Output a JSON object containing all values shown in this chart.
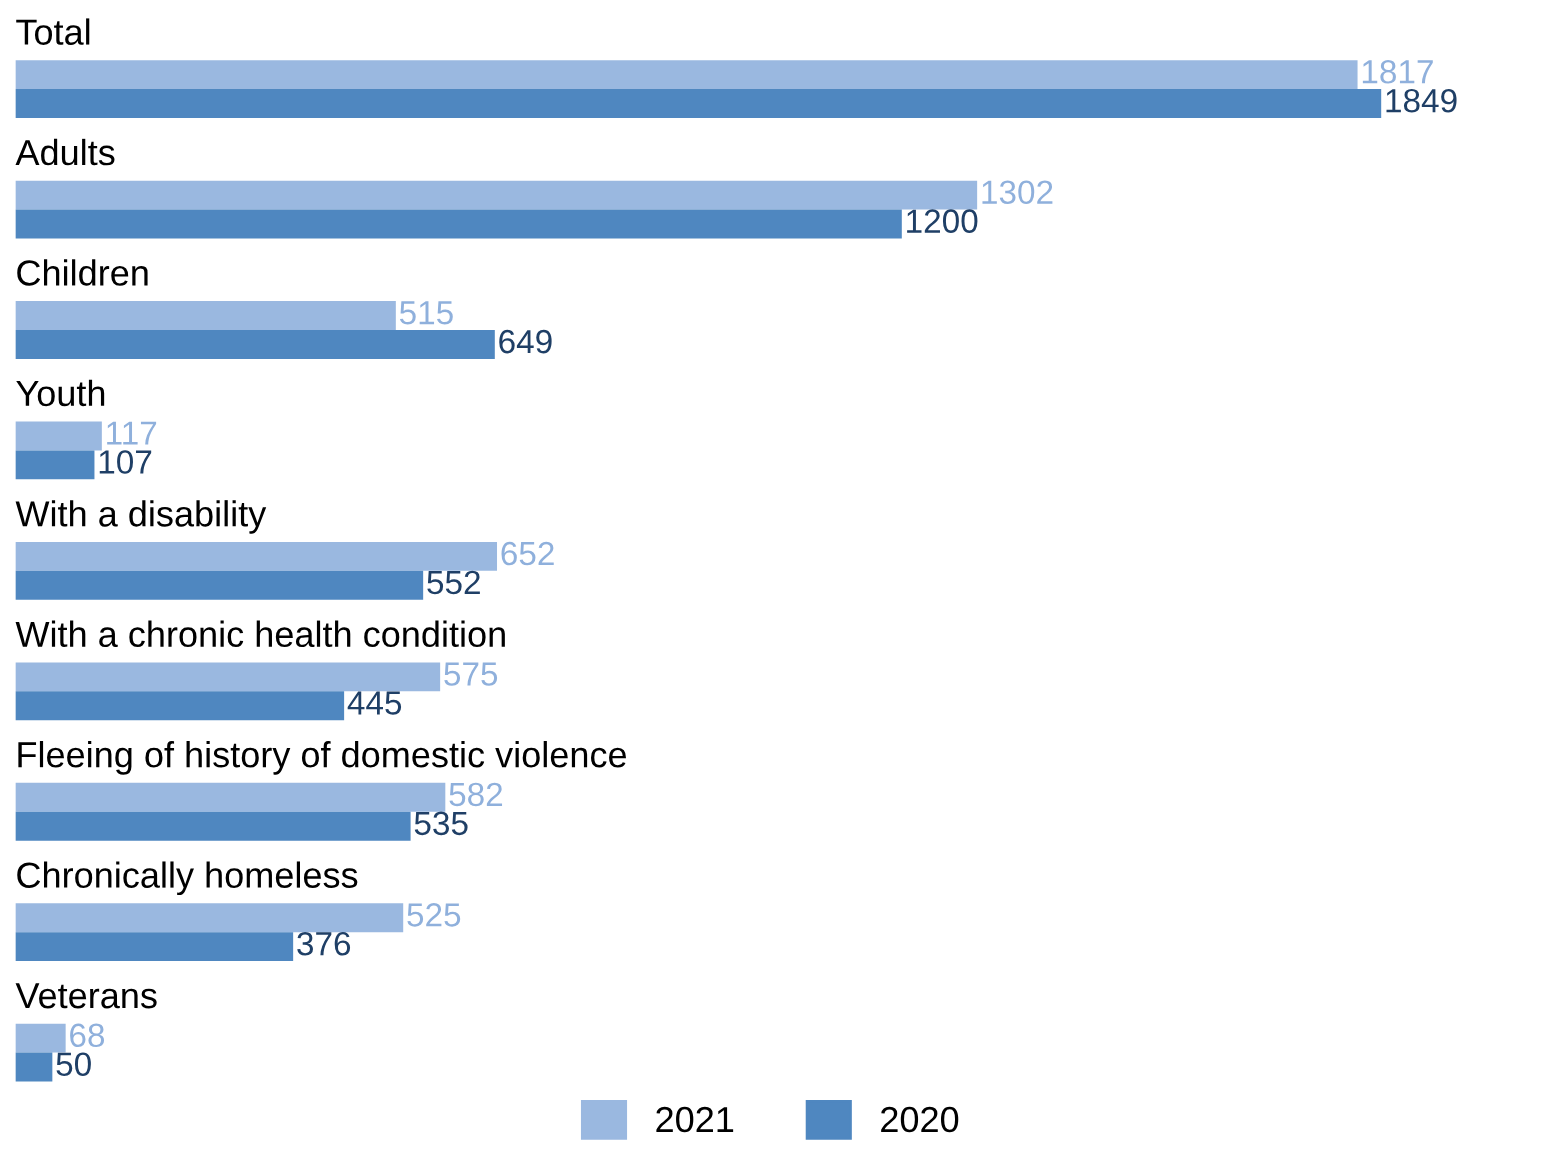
{
  "chart_data": {
    "type": "bar",
    "orientation": "horizontal",
    "data_labels": true,
    "legend": "bottom",
    "categories": [
      "Total",
      "Adults",
      "Children",
      "Youth",
      "With a disability",
      "With a chronic health condition",
      "Fleeing of history of domestic violence",
      "Chronically homeless",
      "Veterans"
    ],
    "series": [
      {
        "name": "2021",
        "color": "#9ab8e0",
        "values": [
          1817,
          1302,
          515,
          117,
          652,
          575,
          582,
          525,
          68
        ]
      },
      {
        "name": "2020",
        "color": "#4f87c0",
        "values": [
          1849,
          1200,
          649,
          107,
          552,
          445,
          535,
          376,
          50
        ]
      }
    ]
  }
}
